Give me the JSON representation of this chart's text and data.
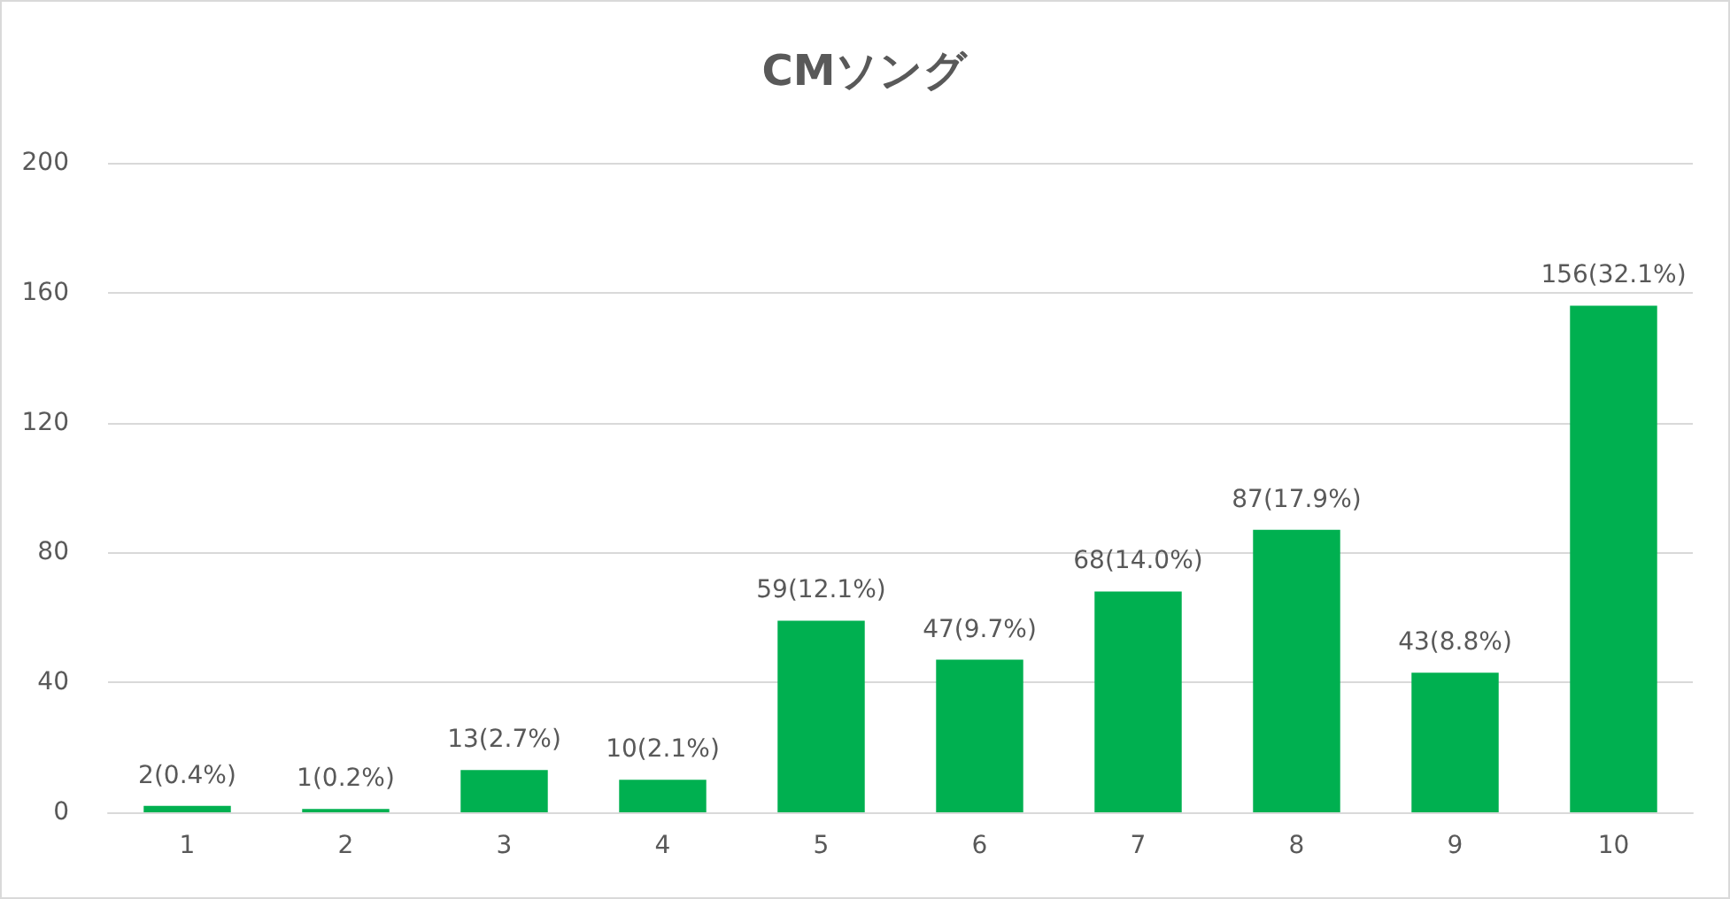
{
  "chart_data": {
    "type": "bar",
    "title": "CMソング",
    "categories": [
      "1",
      "2",
      "3",
      "4",
      "5",
      "6",
      "7",
      "8",
      "9",
      "10"
    ],
    "values": [
      2,
      1,
      13,
      10,
      59,
      47,
      68,
      87,
      43,
      156
    ],
    "color": "#00b050",
    "value_labels": [
      "2(0.4%)",
      "1(0.2%)",
      "13(2.7%)",
      "10(2.1%)",
      "59(12.1%)",
      "47(9.7%)",
      "68(14.0%)",
      "87(17.9%)",
      "43(8.8%)",
      "156(32.1%)"
    ],
    "ylim": [
      0,
      200
    ],
    "yticks": [
      0,
      40,
      80,
      120,
      160,
      200
    ],
    "grid": "y"
  }
}
